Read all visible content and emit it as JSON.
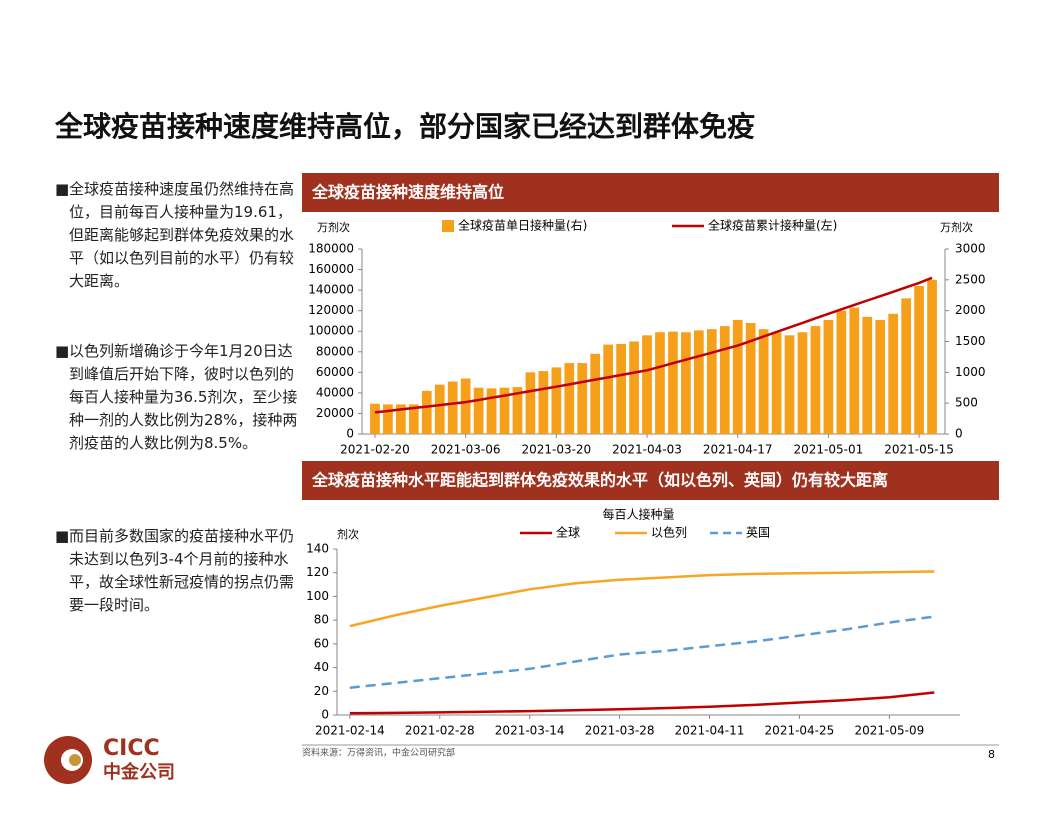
{
  "title": "全球疫苗接种速度维持高位，部分国家已经达到群体免疫",
  "bullets": [
    "全球疫苗接种速度虽仍然维持在高位，目前每百人接种量为19.61，但距离能够起到群体免疫效果的水平（如以色列目前的水平）仍有较大距离。",
    "以色列新增确诊于今年1月20日达到峰值后开始下降，彼时以色列的每百人接种量为36.5剂次，至少接种一剂的人数比例为28%，接种两剂疫苗的人数比例为8.5%。",
    "而目前多数国家的疫苗接种水平仍未达到以色列3-4个月前的接种水平，故全球性新冠疫情的拐点仍需要一段时间。"
  ],
  "source": "资料来源：万得资讯，中金公司研究部",
  "page": "8",
  "logo": {
    "text": "CICC",
    "subtext": "中金公司"
  },
  "chart_data": [
    {
      "type": "bar_line",
      "title": "全球疫苗接种速度维持高位",
      "y_label": "万剂次",
      "y2_label": "万剂次",
      "x": [
        "2021-02-20",
        "2021-02-22",
        "2021-02-24",
        "2021-02-26",
        "2021-02-28",
        "2021-03-02",
        "2021-03-04",
        "2021-03-06",
        "2021-03-08",
        "2021-03-10",
        "2021-03-12",
        "2021-03-14",
        "2021-03-16",
        "2021-03-18",
        "2021-03-20",
        "2021-03-22",
        "2021-03-24",
        "2021-03-26",
        "2021-03-28",
        "2021-03-30",
        "2021-04-01",
        "2021-04-03",
        "2021-04-05",
        "2021-04-07",
        "2021-04-09",
        "2021-04-11",
        "2021-04-13",
        "2021-04-15",
        "2021-04-17",
        "2021-04-19",
        "2021-04-21",
        "2021-04-23",
        "2021-04-25",
        "2021-04-27",
        "2021-04-29",
        "2021-05-01",
        "2021-05-03",
        "2021-05-05",
        "2021-05-07",
        "2021-05-09",
        "2021-05-11",
        "2021-05-13",
        "2021-05-15",
        "2021-05-17"
      ],
      "xlim": [
        "2021-02-18",
        "2021-05-19"
      ],
      "xticks": [
        "2021-02-20",
        "2021-03-06",
        "2021-03-20",
        "2021-04-03",
        "2021-04-17",
        "2021-05-01",
        "2021-05-15"
      ],
      "series": [
        {
          "name": "全球疫苗单日接种量(右)",
          "kind": "bar",
          "axis": "y2",
          "color": "#f59f1b",
          "values": [
            490,
            480,
            480,
            480,
            700,
            800,
            850,
            900,
            750,
            740,
            750,
            760,
            1000,
            1020,
            1080,
            1150,
            1150,
            1300,
            1450,
            1460,
            1500,
            1600,
            1650,
            1660,
            1650,
            1680,
            1700,
            1750,
            1850,
            1800,
            1700,
            1650,
            1600,
            1650,
            1750,
            1850,
            2000,
            2050,
            1900,
            1850,
            1950,
            2200,
            2400,
            2500
          ]
        },
        {
          "name": "全球疫苗累计接种量(左)",
          "kind": "line",
          "axis": "y",
          "color": "#c00000",
          "values": [
            21000,
            22400,
            23900,
            25300,
            26700,
            28100,
            29600,
            31000,
            33100,
            35300,
            37400,
            39600,
            41700,
            43900,
            46000,
            48300,
            50600,
            52900,
            55100,
            57400,
            59700,
            62000,
            65400,
            68900,
            72300,
            75700,
            79100,
            82600,
            86000,
            90400,
            94900,
            99300,
            103700,
            108100,
            112600,
            117000,
            121300,
            125600,
            129900,
            134100,
            138400,
            142700,
            147000,
            152000
          ]
        }
      ],
      "ylim": [
        0,
        180000
      ],
      "yticks": [
        0,
        20000,
        40000,
        60000,
        80000,
        100000,
        120000,
        140000,
        160000,
        180000
      ],
      "y2lim": [
        0,
        3000
      ],
      "y2ticks": [
        0,
        500,
        1000,
        1500,
        2000,
        2500,
        3000
      ]
    },
    {
      "type": "line",
      "title": "全球疫苗接种水平距能起到群体免疫效果的水平（如以色列、英国）仍有较大距离",
      "legend_title": "每百人接种量",
      "y_label": "剂次",
      "x": [
        "2021-02-14",
        "2021-02-21",
        "2021-02-28",
        "2021-03-07",
        "2021-03-14",
        "2021-03-21",
        "2021-03-28",
        "2021-04-04",
        "2021-04-11",
        "2021-04-18",
        "2021-04-25",
        "2021-05-02",
        "2021-05-09",
        "2021-05-16"
      ],
      "xlim": [
        "2021-02-12",
        "2021-05-20"
      ],
      "xticks": [
        "2021-02-14",
        "2021-02-28",
        "2021-03-14",
        "2021-03-28",
        "2021-04-11",
        "2021-04-25",
        "2021-05-09"
      ],
      "series": [
        {
          "name": "全球",
          "color": "#c00000",
          "dash": false,
          "values": [
            1.5,
            1.8,
            2.2,
            2.7,
            3.3,
            4,
            4.8,
            5.8,
            7,
            8.5,
            10.5,
            12.5,
            15,
            19
          ]
        },
        {
          "name": "以色列",
          "color": "#f5a623",
          "dash": false,
          "values": [
            75,
            84,
            92,
            99,
            106,
            111,
            114,
            116,
            118,
            119,
            119.5,
            120,
            120.5,
            121
          ]
        },
        {
          "name": "英国",
          "color": "#5b9bd5",
          "dash": true,
          "values": [
            23,
            27,
            31,
            35,
            39,
            45,
            51,
            54,
            58,
            62,
            67,
            72,
            78,
            83
          ]
        }
      ],
      "ylim": [
        0,
        140
      ],
      "yticks": [
        0,
        20,
        40,
        60,
        80,
        100,
        120,
        140
      ]
    }
  ]
}
